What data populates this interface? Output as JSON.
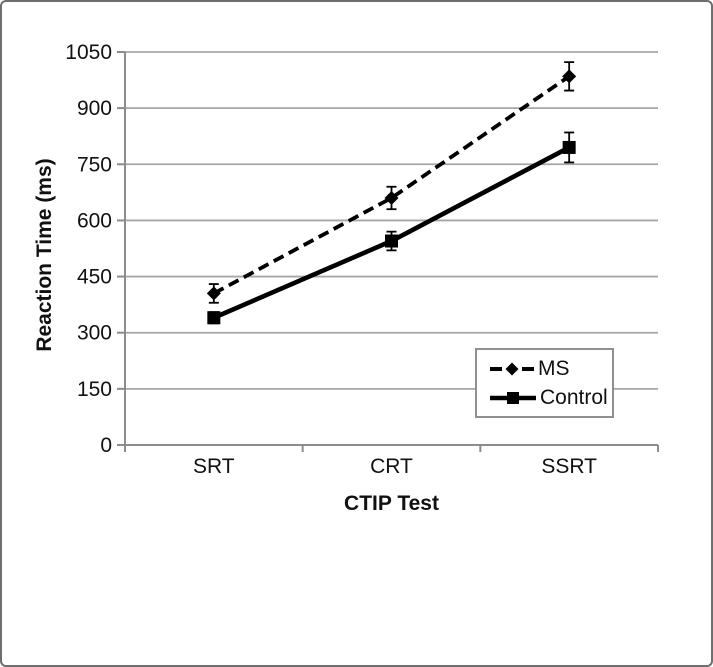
{
  "figure": {
    "background": "#ffffff",
    "border_color": "#6e6e6e"
  },
  "chart_data": {
    "type": "line",
    "title": "",
    "xlabel": "CTIP Test",
    "ylabel": "Reaction Time (ms)",
    "categories": [
      "SRT",
      "CRT",
      "SSRT"
    ],
    "series": [
      {
        "name": "MS",
        "style": "dashed",
        "marker": "diamond",
        "color": "#000000",
        "values": [
          405,
          660,
          985
        ],
        "error_bars": [
          25,
          30,
          38
        ]
      },
      {
        "name": "Control",
        "style": "solid",
        "marker": "square",
        "color": "#000000",
        "values": [
          340,
          545,
          795
        ],
        "error_bars": [
          15,
          25,
          40
        ]
      }
    ],
    "ylim": [
      0,
      1050
    ],
    "yticks": [
      0,
      150,
      300,
      450,
      600,
      750,
      900,
      1050
    ],
    "grid": true,
    "grid_color": "#a6a6a6",
    "axis_color": "#8c8c8c",
    "legend_position": "inside-bottom-right"
  }
}
